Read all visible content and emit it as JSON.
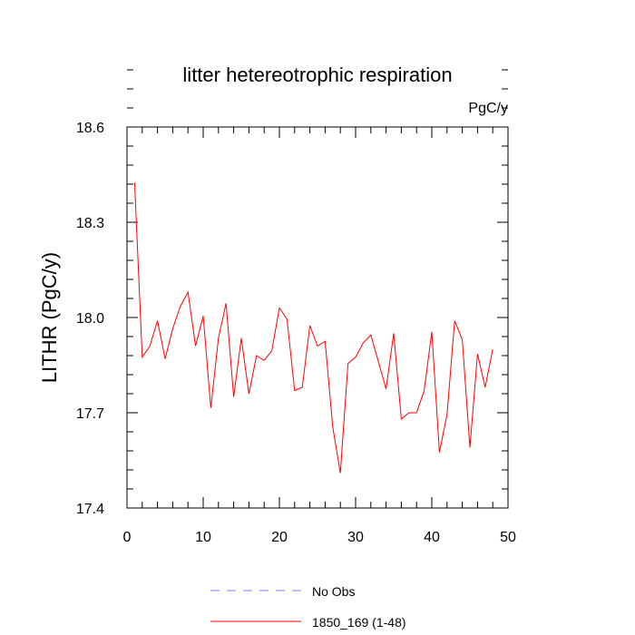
{
  "chart_data": {
    "type": "line",
    "title": "litter hetereotrophic respiration",
    "units_label": "PgC/y",
    "xlabel": "",
    "ylabel": "LITHR  (PgC/y)",
    "xlim": [
      0,
      50
    ],
    "ylim": [
      17.4,
      18.6
    ],
    "x_ticks": [
      0,
      10,
      20,
      30,
      40,
      50
    ],
    "x_tick_labels": [
      "0",
      "10",
      "20",
      "30",
      "40",
      "50"
    ],
    "y_ticks": [
      17.4,
      17.7,
      18.0,
      18.3,
      18.6
    ],
    "y_tick_labels": [
      "17.4",
      "17.7",
      "18.0",
      "18.3",
      "18.6"
    ],
    "series": [
      {
        "name": "1850_169 (1-48)",
        "color": "#ff0000",
        "style": "solid",
        "x": [
          1,
          2,
          3,
          4,
          5,
          6,
          7,
          8,
          9,
          10,
          11,
          12,
          13,
          14,
          15,
          16,
          17,
          18,
          19,
          20,
          21,
          22,
          23,
          24,
          25,
          26,
          27,
          28,
          29,
          30,
          31,
          32,
          33,
          34,
          35,
          36,
          37,
          38,
          39,
          40,
          41,
          42,
          43,
          44,
          45,
          46,
          47,
          48
        ],
        "values": [
          18.425,
          17.875,
          17.91,
          17.99,
          17.87,
          17.965,
          18.035,
          18.08,
          17.91,
          18.005,
          17.715,
          17.935,
          18.045,
          17.75,
          17.935,
          17.76,
          17.88,
          17.865,
          17.895,
          18.03,
          17.995,
          17.77,
          17.78,
          17.975,
          17.91,
          17.925,
          17.655,
          17.51,
          17.855,
          17.875,
          17.92,
          17.945,
          17.86,
          17.775,
          17.95,
          17.68,
          17.7,
          17.7,
          17.77,
          17.955,
          17.575,
          17.695,
          17.99,
          17.93,
          17.59,
          17.885,
          17.78,
          17.9
        ]
      }
    ],
    "legend": {
      "placement": "bottom",
      "entries": [
        {
          "label": "No Obs",
          "color": "#8080ff",
          "style": "dashed"
        },
        {
          "label": "1850_169 (1-48)",
          "color": "#ff0000",
          "style": "solid"
        }
      ]
    }
  }
}
